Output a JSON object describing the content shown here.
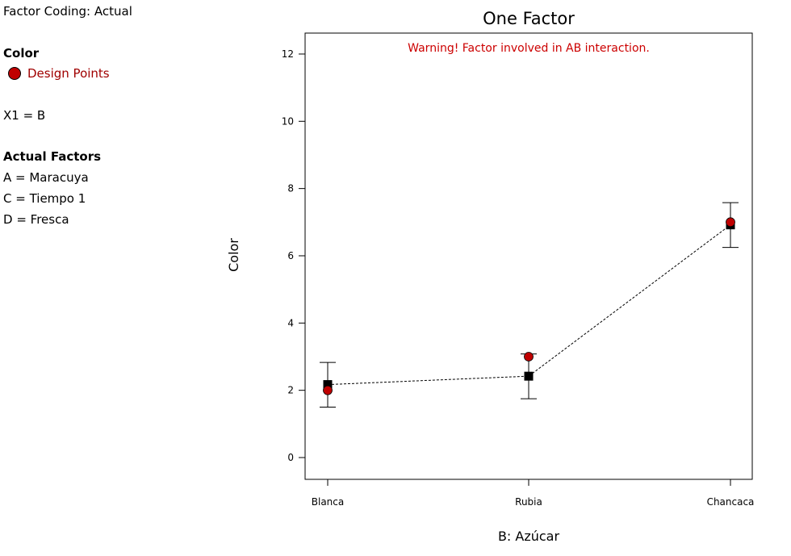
{
  "sidebar": {
    "factor_coding": "Factor Coding: Actual",
    "response_heading": "Color",
    "legend_label": "Design Points",
    "x1": "X1 = B",
    "actual_factors_heading": "Actual Factors",
    "factors": [
      "A = Maracuya",
      "C = Tiempo 1",
      "D = Fresca"
    ]
  },
  "colors": {
    "design_point": "#c00000",
    "warning": "#cc0000",
    "mean": "#000000"
  },
  "chart_data": {
    "type": "scatter",
    "title": "One Factor",
    "warning": "Warning! Factor involved in AB interaction.",
    "xlabel": "B: Azúcar",
    "ylabel": "Color",
    "categories": [
      "Blanca",
      "Rubia",
      "Chancaca"
    ],
    "ylim": [
      -0.6,
      12.7
    ],
    "yticks": [
      0,
      2,
      4,
      6,
      8,
      10,
      12
    ],
    "series": [
      {
        "name": "Predicted mean",
        "values": [
          2.17,
          2.42,
          6.92
        ]
      },
      {
        "name": "Error bar low",
        "values": [
          1.5,
          1.75,
          6.25
        ]
      },
      {
        "name": "Error bar high",
        "values": [
          2.83,
          3.08,
          7.58
        ]
      },
      {
        "name": "Design Points",
        "values": [
          2.0,
          3.0,
          7.0
        ]
      }
    ]
  }
}
